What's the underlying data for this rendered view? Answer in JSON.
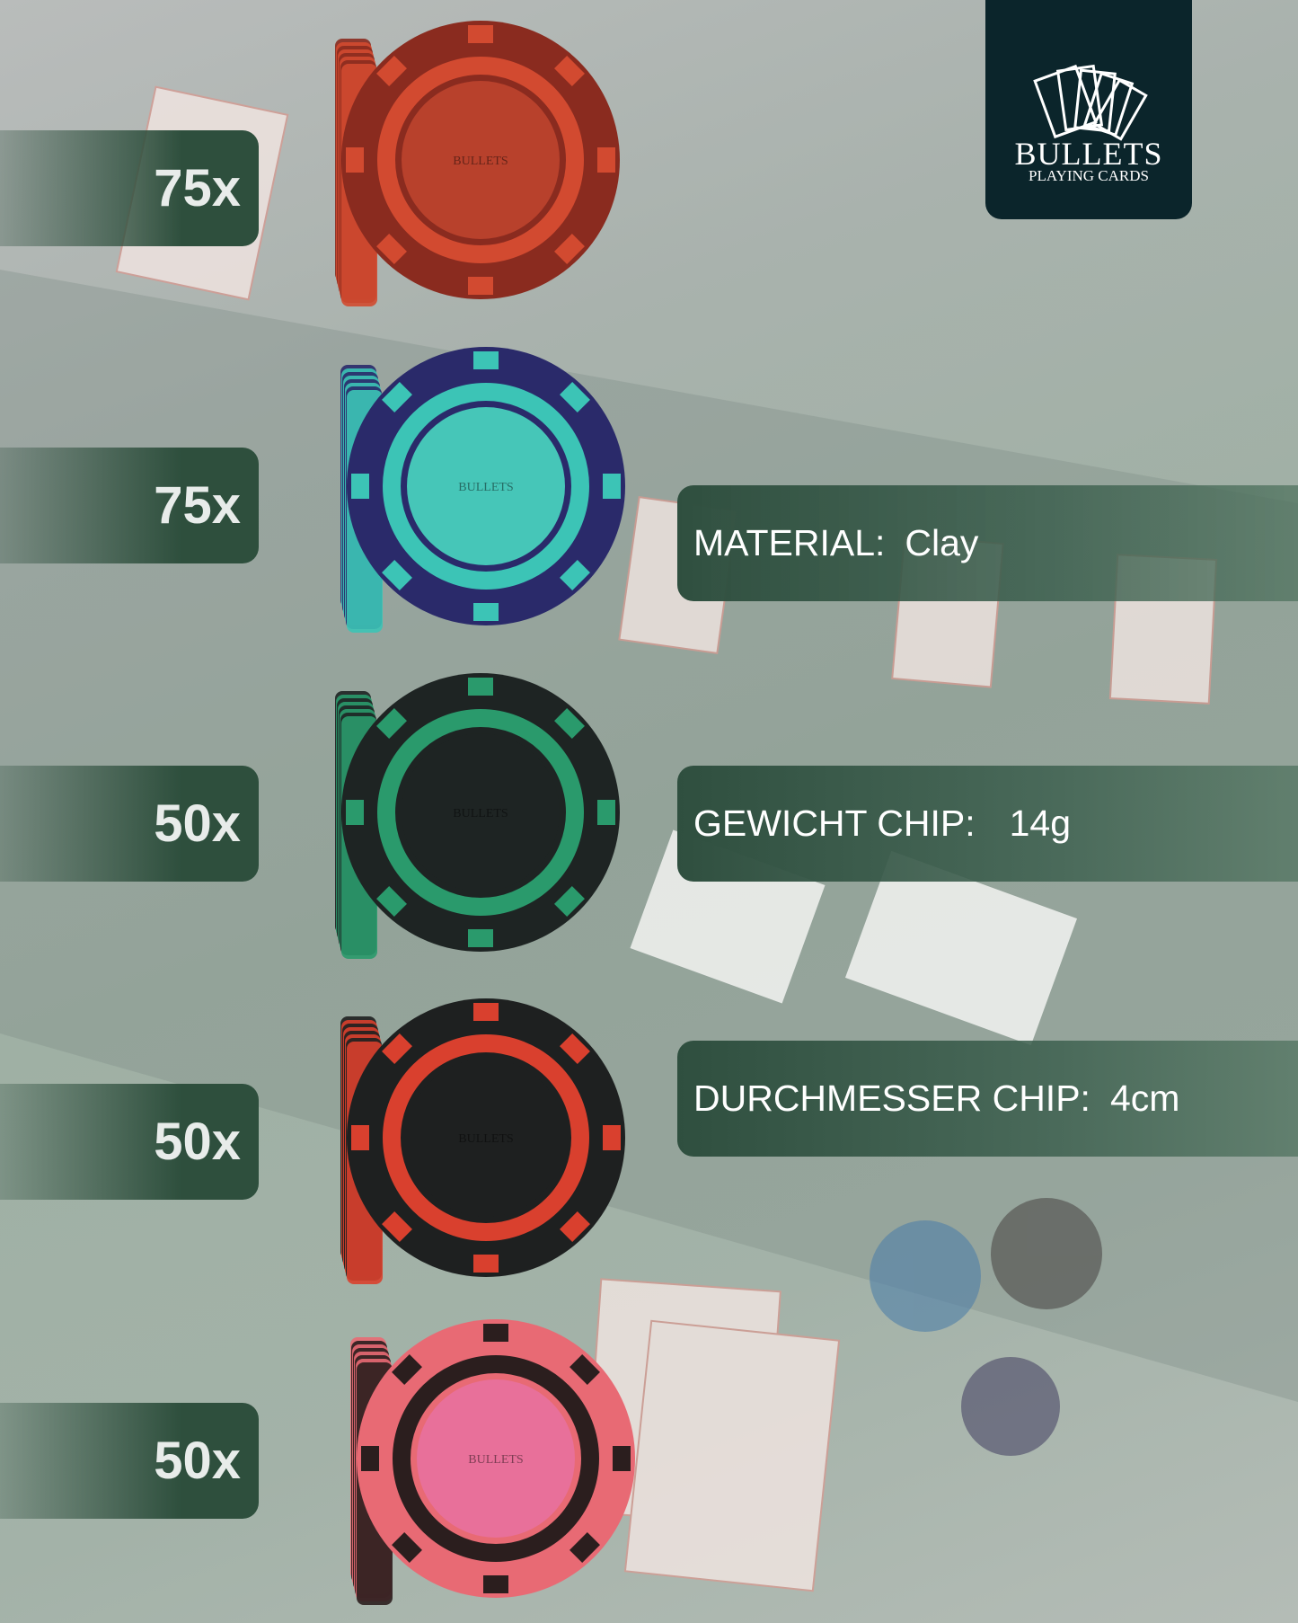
{
  "logo": {
    "brand": "BULLETS",
    "sub": "PLAYING CARDS"
  },
  "counts": [
    "75x",
    "75x",
    "50x",
    "50x",
    "50x"
  ],
  "chips": [
    {
      "color": "red",
      "outer": "#8a2b1f",
      "accent": "#d24a30",
      "center": "#b8412c"
    },
    {
      "color": "blue-turquoise",
      "outer": "#2a2a6a",
      "accent": "#3cc4b6",
      "center": "#46c6b8"
    },
    {
      "color": "black-green",
      "outer": "#1e2423",
      "accent": "#2a9a6c",
      "center": "#1e2423"
    },
    {
      "color": "black-red",
      "outer": "#1e2020",
      "accent": "#d9402e",
      "center": "#1e2020"
    },
    {
      "color": "pink",
      "outer": "#e86a74",
      "accent": "#2b1e1e",
      "center": "#e8709a"
    }
  ],
  "specs": [
    {
      "label": "MATERIAL:",
      "value": "Clay"
    },
    {
      "label": "GEWICHT CHIP:",
      "value": "14g"
    },
    {
      "label": "DURCHMESSER CHIP:",
      "value": "4cm"
    }
  ]
}
